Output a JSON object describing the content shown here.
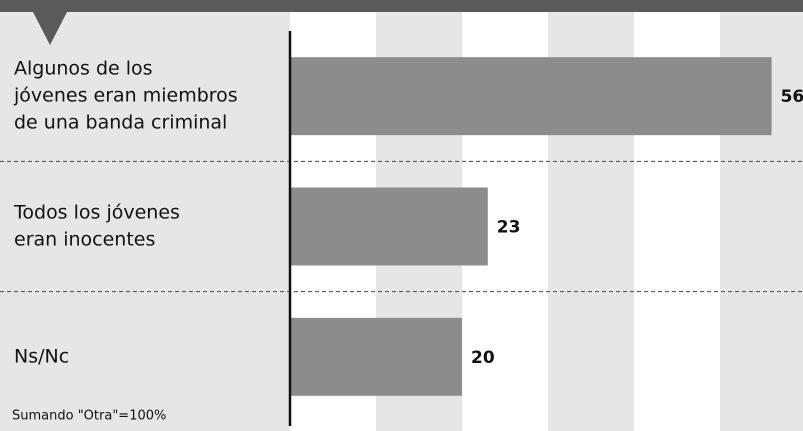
{
  "chart_data": {
    "type": "bar",
    "orientation": "horizontal",
    "categories": [
      [
        "Algunos de los",
        "jóvenes eran miembros",
        "de una banda criminal"
      ],
      [
        "Todos los jóvenes",
        "eran inocentes"
      ],
      [
        "Ns/Nc"
      ]
    ],
    "values": [
      56,
      23,
      20
    ],
    "color": "#8c8c8c",
    "xlim": [
      0,
      60
    ],
    "xticks": [
      0,
      10,
      20,
      30,
      40,
      50,
      60
    ],
    "note": "Sumando \"Otra\"=100%"
  }
}
